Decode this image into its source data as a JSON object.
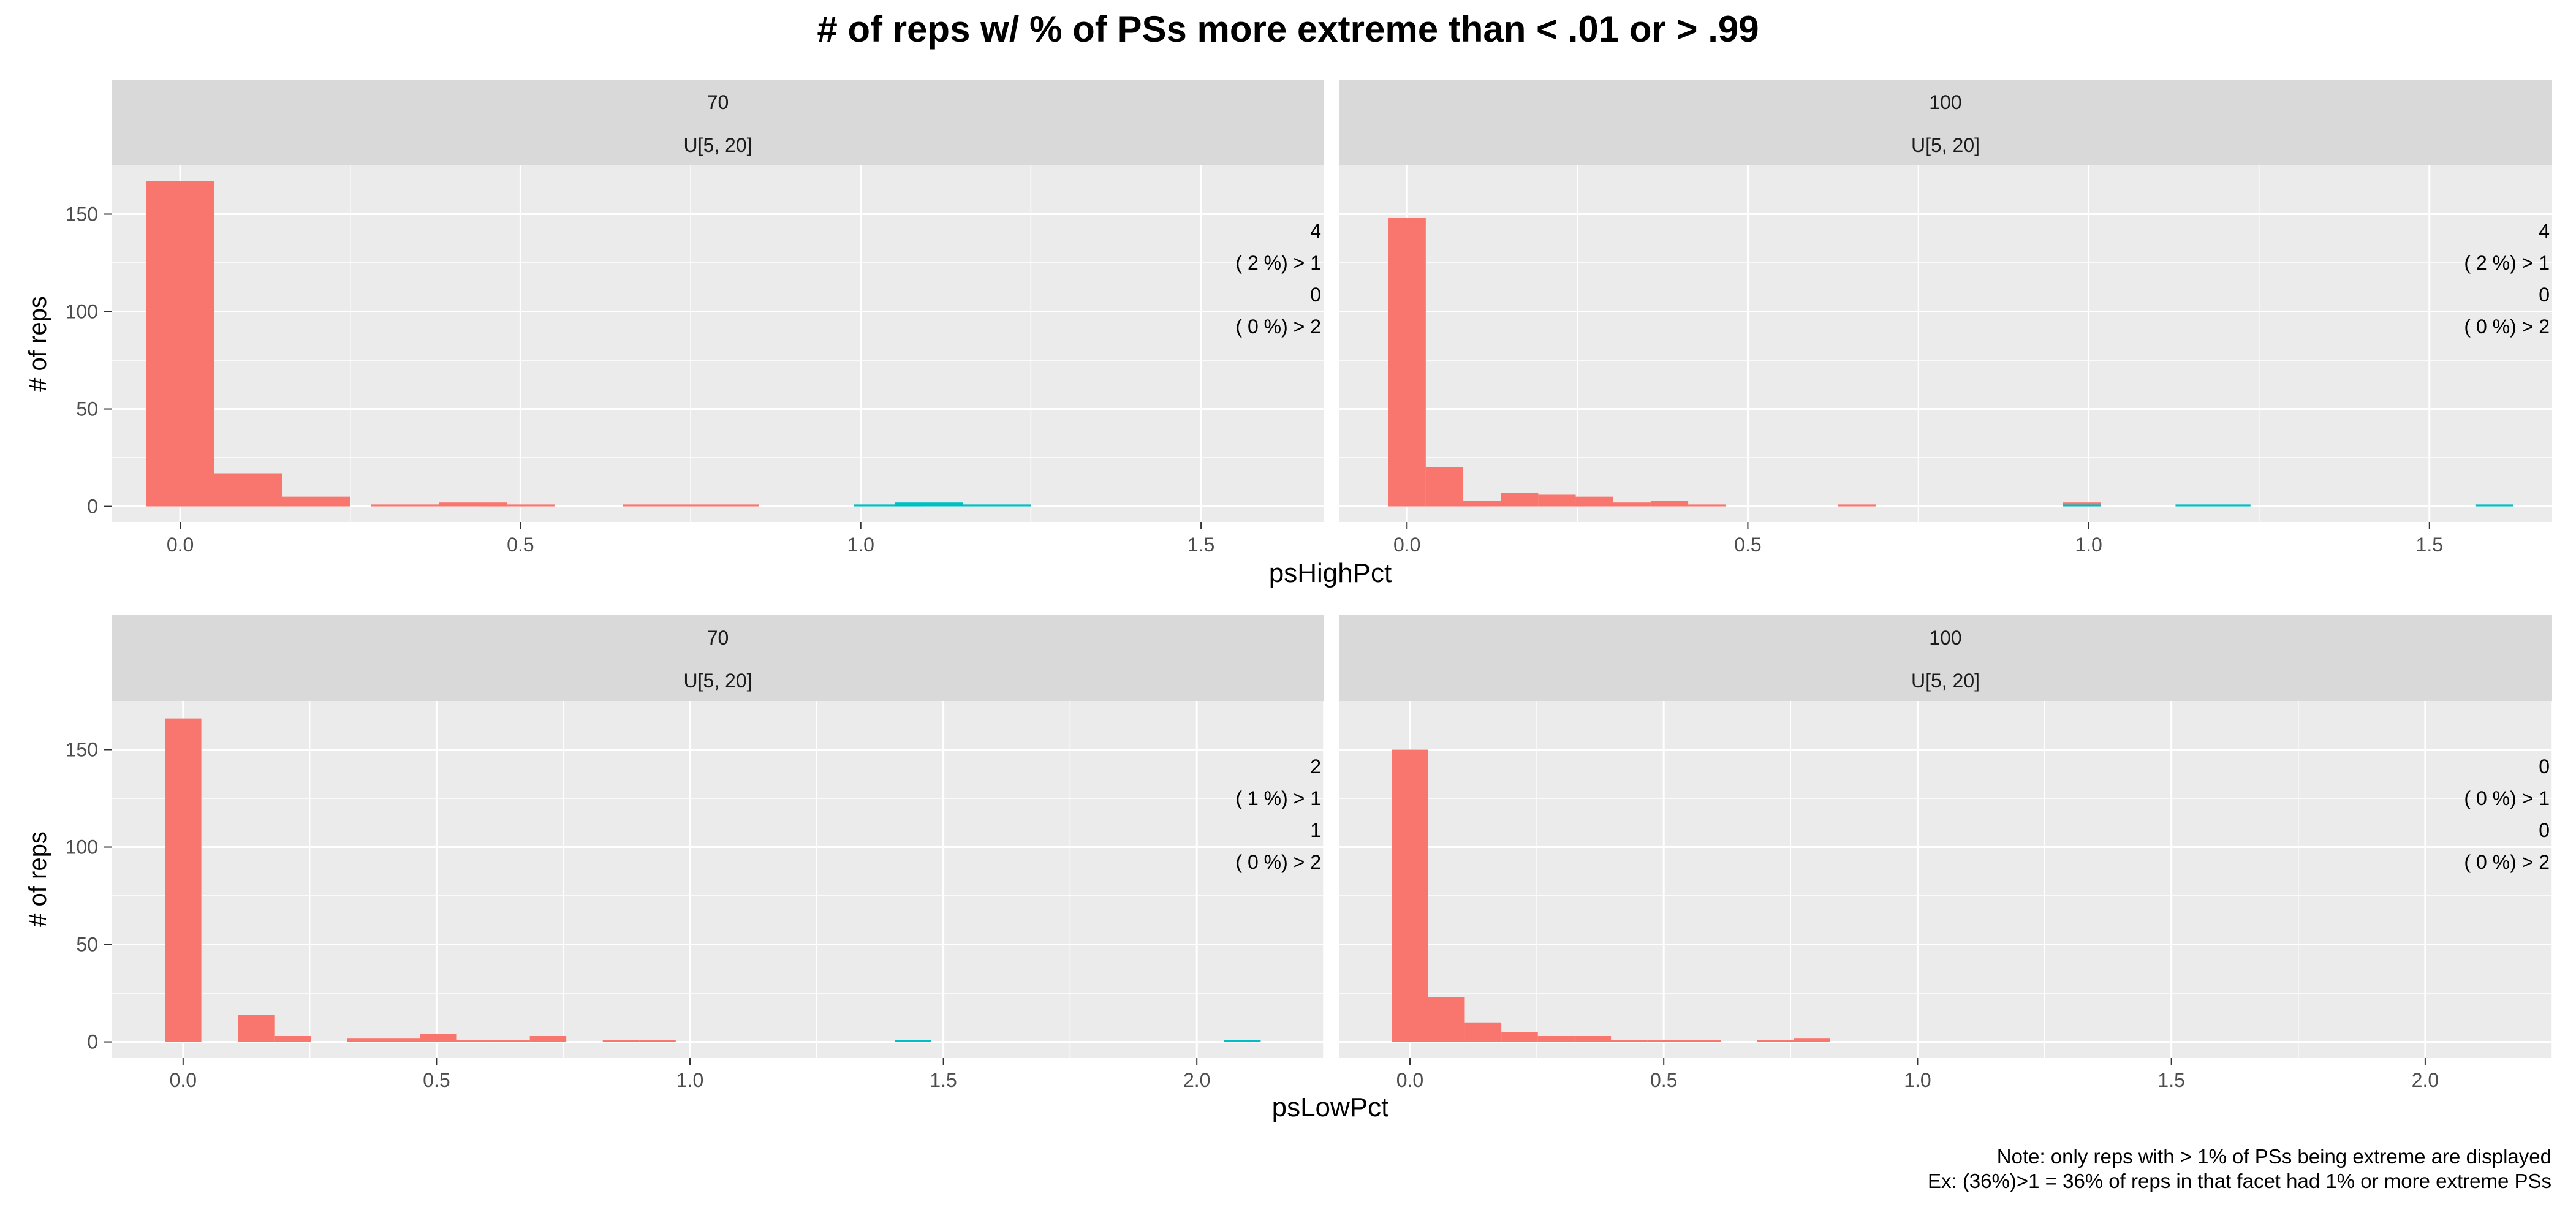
{
  "title": "# of reps w/ % of PSs more extreme than < .01 or > .99",
  "footnote": {
    "line1": "Note: only reps with > 1% of PSs being extreme are displayed",
    "line2": "Ex: (36%)>1 = 36% of reps in that facet had 1% or more extreme PSs"
  },
  "colors": {
    "low_group": "#F8766D",
    "high_group": "#00BFC4",
    "panel_bg": "#EBEBEB",
    "strip_bg": "#D9D9D9",
    "grid": "#FFFFFF"
  },
  "chart_data": [
    {
      "type": "bar",
      "row": "psHighPct",
      "xlabel": "psHighPct",
      "ylabel": "# of reps",
      "ylim": [
        -8,
        175
      ],
      "yticks": [
        0,
        50,
        100,
        150
      ],
      "xlim": [
        -0.1,
        1.68
      ],
      "xticks": [
        0.0,
        0.5,
        1.0,
        1.5
      ],
      "xtick_labels": [
        "0.0",
        "0.5",
        "1.0",
        "1.5"
      ],
      "grid": true,
      "panels": [
        {
          "strip": [
            "70",
            "U[5, 20]"
          ],
          "annotation": [
            "4",
            "( 2 %) > 1",
            "0",
            "( 0 %) > 2"
          ],
          "bin_width": 0.1,
          "series": [
            {
              "group": "low",
              "bars": [
                {
                  "x": 0.0,
                  "count": 167
                },
                {
                  "x": 0.1,
                  "count": 17
                },
                {
                  "x": 0.2,
                  "count": 5
                },
                {
                  "x": 0.33,
                  "count": 1
                },
                {
                  "x": 0.43,
                  "count": 2
                },
                {
                  "x": 0.5,
                  "count": 1
                },
                {
                  "x": 0.7,
                  "count": 1
                },
                {
                  "x": 0.8,
                  "count": 1
                }
              ]
            },
            {
              "group": "high",
              "bars": [
                {
                  "x": 1.04,
                  "count": 1
                },
                {
                  "x": 1.1,
                  "count": 2
                },
                {
                  "x": 1.2,
                  "count": 1
                }
              ]
            }
          ]
        },
        {
          "strip": [
            "100",
            "U[5, 20]"
          ],
          "annotation": [
            "4",
            "( 2 %) > 1",
            "0",
            "( 0 %) > 2"
          ],
          "bin_width": 0.055,
          "series": [
            {
              "group": "low",
              "bars": [
                {
                  "x": 0.0,
                  "count": 148
                },
                {
                  "x": 0.055,
                  "count": 20
                },
                {
                  "x": 0.11,
                  "count": 3
                },
                {
                  "x": 0.165,
                  "count": 7
                },
                {
                  "x": 0.22,
                  "count": 6
                },
                {
                  "x": 0.275,
                  "count": 5
                },
                {
                  "x": 0.33,
                  "count": 2
                },
                {
                  "x": 0.385,
                  "count": 3
                },
                {
                  "x": 0.44,
                  "count": 1
                },
                {
                  "x": 0.66,
                  "count": 1
                },
                {
                  "x": 0.99,
                  "count": 2
                }
              ]
            },
            {
              "group": "high",
              "bars": [
                {
                  "x": 0.99,
                  "count": 1
                },
                {
                  "x": 1.155,
                  "count": 1
                },
                {
                  "x": 1.21,
                  "count": 1
                },
                {
                  "x": 1.595,
                  "count": 1
                }
              ]
            }
          ]
        }
      ]
    },
    {
      "type": "bar",
      "row": "psLowPct",
      "xlabel": "psLowPct",
      "ylabel": "# of reps",
      "ylim": [
        -8,
        175
      ],
      "yticks": [
        0,
        50,
        100,
        150
      ],
      "xlim": [
        -0.14,
        2.25
      ],
      "xticks": [
        0.0,
        0.5,
        1.0,
        1.5,
        2.0
      ],
      "xtick_labels": [
        "0.0",
        "0.5",
        "1.0",
        "1.5",
        "2.0"
      ],
      "grid": true,
      "panels": [
        {
          "strip": [
            "70",
            "U[5, 20]"
          ],
          "annotation": [
            "2",
            "( 1 %) > 1",
            "1",
            "( 0 %) > 2"
          ],
          "bin_width": 0.072,
          "series": [
            {
              "group": "low",
              "bars": [
                {
                  "x": 0.0,
                  "count": 166
                },
                {
                  "x": 0.144,
                  "count": 14
                },
                {
                  "x": 0.216,
                  "count": 3
                },
                {
                  "x": 0.36,
                  "count": 2
                },
                {
                  "x": 0.432,
                  "count": 2
                },
                {
                  "x": 0.504,
                  "count": 4
                },
                {
                  "x": 0.576,
                  "count": 1
                },
                {
                  "x": 0.648,
                  "count": 1
                },
                {
                  "x": 0.72,
                  "count": 3
                },
                {
                  "x": 0.864,
                  "count": 1
                },
                {
                  "x": 0.936,
                  "count": 1
                }
              ]
            },
            {
              "group": "high",
              "bars": [
                {
                  "x": 1.44,
                  "count": 1
                },
                {
                  "x": 2.09,
                  "count": 1
                }
              ]
            }
          ]
        },
        {
          "strip": [
            "100",
            "U[5, 20]"
          ],
          "annotation": [
            "0",
            "( 0 %) > 1",
            "0",
            "( 0 %) > 2"
          ],
          "bin_width": 0.072,
          "series": [
            {
              "group": "low",
              "bars": [
                {
                  "x": 0.0,
                  "count": 150
                },
                {
                  "x": 0.072,
                  "count": 23
                },
                {
                  "x": 0.144,
                  "count": 10
                },
                {
                  "x": 0.216,
                  "count": 5
                },
                {
                  "x": 0.288,
                  "count": 3
                },
                {
                  "x": 0.36,
                  "count": 3
                },
                {
                  "x": 0.432,
                  "count": 1
                },
                {
                  "x": 0.504,
                  "count": 1
                },
                {
                  "x": 0.576,
                  "count": 1
                },
                {
                  "x": 0.72,
                  "count": 1
                },
                {
                  "x": 0.792,
                  "count": 2
                }
              ]
            },
            {
              "group": "high",
              "bars": []
            }
          ]
        }
      ]
    }
  ]
}
